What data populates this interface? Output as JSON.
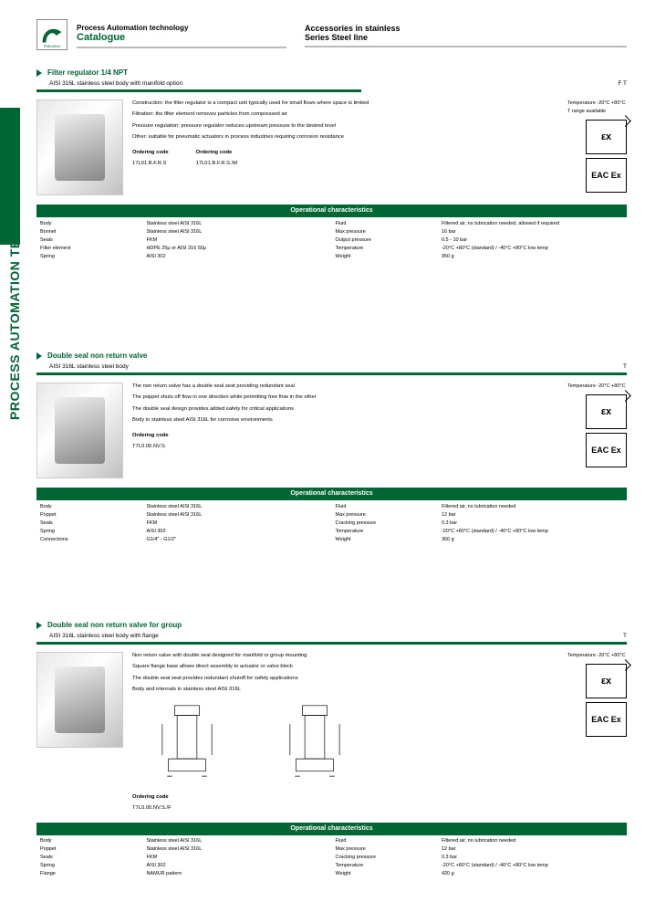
{
  "header": {
    "brand": "PNEUMAX",
    "col1_line1": "Process Automation technology",
    "col1_line2": "Catalogue",
    "col2_line1": "Accessories in stainless",
    "col2_line2": "Series Steel line"
  },
  "sidebar_label": "PROCESS AUTOMATION TECHNOLOGY",
  "sections": [
    {
      "title": "Filter regulator 1/4 NPT",
      "subtitle_left": "AISI 316L stainless steel body with manifold option",
      "subtitle_right": "F T",
      "sub2": "F",
      "sub3": "T",
      "desc_lines": [
        "Construction: the filter regulator is a compact unit typically used for small flows where space is limited",
        "Filtration: the filter element removes particles from compressed air",
        "Pressure regulation: pressure regulator reduces upstream pressure to the desired level",
        "Other: suitable for pneumatic actuators in process industries requiring corrosion resistance"
      ],
      "temp_lines": [
        "Temperature -20°C +80°C",
        "T range available"
      ],
      "badge1": "εx",
      "badge2": "EAC Ex",
      "order": [
        {
          "title": "Ordering code",
          "code": "17L01.B.F.R.S"
        },
        {
          "title": "Ordering code",
          "code": "17L01.B.F.R.S./M"
        }
      ],
      "opchar_label": "Operational characteristics",
      "opchar_rows": [
        [
          "Body",
          "Stainless steel AISI 316L",
          "Fluid",
          "Filtered air, no lubrication needed, allowed if required"
        ],
        [
          "Bonnet",
          "Stainless steel AISI 316L",
          "Max pressure",
          "16 bar"
        ],
        [
          "Seals",
          "FKM",
          "Output pressure",
          "0.5 - 10 bar"
        ],
        [
          "Filter element",
          "HDPE 25μ or AISI 316 50μ",
          "Temperature",
          "-20°C +80°C (standard) / -40°C +80°C low temp"
        ],
        [
          "Spring",
          "AISI 302",
          "Weight",
          "950 g"
        ]
      ]
    },
    {
      "title": "Double seal non return valve",
      "subtitle_left": "AISI 316L stainless steel body",
      "subtitle_right": "T",
      "sub2": "T",
      "desc_lines": [
        "The non return valve has a double seal seat providing redundant seal",
        "The poppet shuts off flow in one direction while permitting free flow in the other",
        "The double seal design provides added safety for critical applications",
        "Body in stainless steel AISI 316L for corrosive environments"
      ],
      "temp_lines": [
        "Temperature -20°C +80°C"
      ],
      "badge1": "εx",
      "badge2": "EAC Ex",
      "order": [
        {
          "title": "Ordering code",
          "code": "T7L0.00.NV.S"
        }
      ],
      "opchar_label": "Operational characteristics",
      "opchar_rows": [
        [
          "Body",
          "Stainless steel AISI 316L",
          "Fluid",
          "Filtered air, no lubrication needed"
        ],
        [
          "Poppet",
          "Stainless steel AISI 316L",
          "Max pressure",
          "12 bar"
        ],
        [
          "Seals",
          "FKM",
          "Cracking pressure",
          "0.3 bar"
        ],
        [
          "Spring",
          "AISI 302",
          "Temperature",
          "-20°C +80°C (standard) / -40°C +80°C low temp"
        ],
        [
          "Connections",
          "G1/4\" - G1/2\"",
          "Weight",
          "360 g"
        ]
      ]
    },
    {
      "title": "Double seal non return valve for group",
      "subtitle_left": "AISI 316L stainless steel body with flange",
      "subtitle_right": "T",
      "sub2": "T",
      "desc_lines": [
        "Non return valve with double seal designed for manifold or group mounting",
        "Square flange base allows direct assembly to actuator or valve block",
        "The double seal seat provides redundant shutoff for safety applications",
        "Body and internals in stainless steel AISI 316L"
      ],
      "temp_lines": [
        "Temperature -20°C +80°C"
      ],
      "badge1": "εx",
      "badge2": "EAC Ex",
      "order": [
        {
          "title": "Ordering code",
          "code": "T7L0.00.NV.S./F"
        }
      ],
      "dim_drawings": true,
      "opchar_label": "Operational characteristics",
      "opchar_rows": [
        [
          "Body",
          "Stainless steel AISI 316L",
          "Fluid",
          "Filtered air, no lubrication needed"
        ],
        [
          "Poppet",
          "Stainless steel AISI 316L",
          "Max pressure",
          "12 bar"
        ],
        [
          "Seals",
          "FKM",
          "Cracking pressure",
          "0.3 bar"
        ],
        [
          "Spring",
          "AISI 302",
          "Temperature",
          "-20°C +80°C (standard) / -40°C +80°C low temp"
        ],
        [
          "Flange",
          "NAMUR pattern",
          "Weight",
          "420 g"
        ]
      ]
    }
  ],
  "section_tops": [
    75,
    385,
    680
  ],
  "colors": {
    "green": "#006633",
    "grey": "#bbbbbb"
  }
}
